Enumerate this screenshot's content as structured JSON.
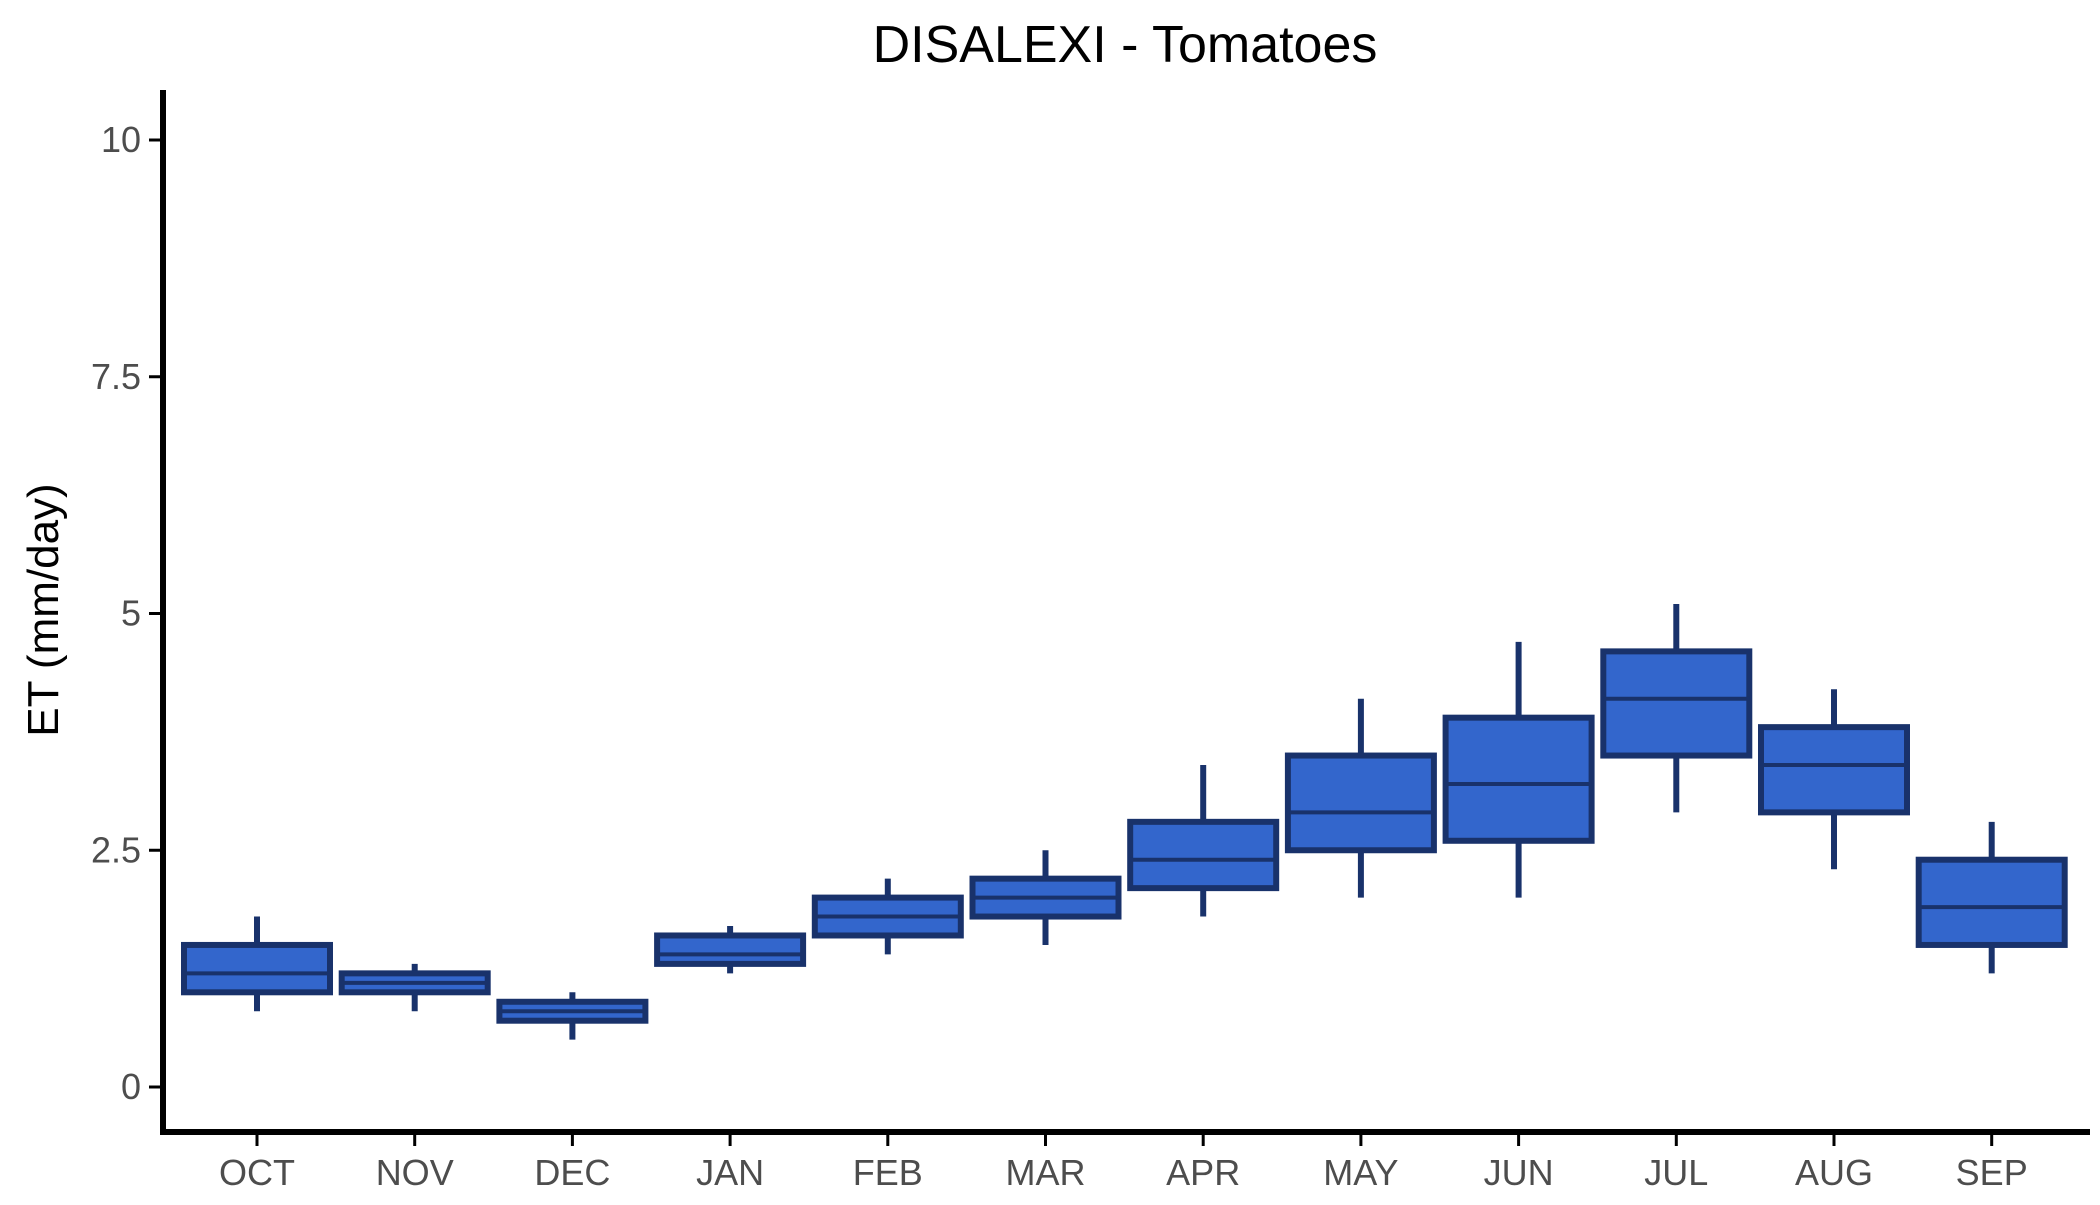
{
  "chart_data": {
    "type": "box",
    "title": "DISALEXI - Tomatoes",
    "xlabel": "",
    "ylabel": "ET (mm/day)",
    "ylim": [
      -0.9,
      10.5
    ],
    "yticks": [
      0,
      2.5,
      5,
      7.5,
      10
    ],
    "ytick_labels": [
      "0",
      "2.5",
      "5",
      "7.5",
      "10"
    ],
    "grid": false,
    "categories": [
      "OCT",
      "NOV",
      "DEC",
      "JAN",
      "FEB",
      "MAR",
      "APR",
      "MAY",
      "JUN",
      "JUL",
      "AUG",
      "SEP"
    ],
    "boxes": [
      {
        "min": 0.8,
        "q1": 1.0,
        "median": 1.2,
        "q3": 1.5,
        "max": 1.8
      },
      {
        "min": 0.8,
        "q1": 1.0,
        "median": 1.1,
        "q3": 1.2,
        "max": 1.3
      },
      {
        "min": 0.5,
        "q1": 0.7,
        "median": 0.8,
        "q3": 0.9,
        "max": 1.0
      },
      {
        "min": 1.2,
        "q1": 1.3,
        "median": 1.4,
        "q3": 1.6,
        "max": 1.7
      },
      {
        "min": 1.4,
        "q1": 1.6,
        "median": 1.8,
        "q3": 2.0,
        "max": 2.2
      },
      {
        "min": 1.5,
        "q1": 1.8,
        "median": 2.0,
        "q3": 2.2,
        "max": 2.5
      },
      {
        "min": 1.8,
        "q1": 2.1,
        "median": 2.4,
        "q3": 2.8,
        "max": 3.4
      },
      {
        "min": 2.0,
        "q1": 2.5,
        "median": 2.9,
        "q3": 3.5,
        "max": 4.1
      },
      {
        "min": 2.0,
        "q1": 2.6,
        "median": 3.2,
        "q3": 3.9,
        "max": 4.7
      },
      {
        "min": 2.9,
        "q1": 3.5,
        "median": 4.1,
        "q3": 4.6,
        "max": 5.1
      },
      {
        "min": 2.3,
        "q1": 2.9,
        "median": 3.4,
        "q3": 3.8,
        "max": 4.2
      },
      {
        "min": 1.2,
        "q1": 1.5,
        "median": 1.9,
        "q3": 2.4,
        "max": 2.8
      }
    ],
    "colors": {
      "fill": "#3366cc",
      "stroke": "#19326b",
      "axis": "#000000"
    }
  }
}
